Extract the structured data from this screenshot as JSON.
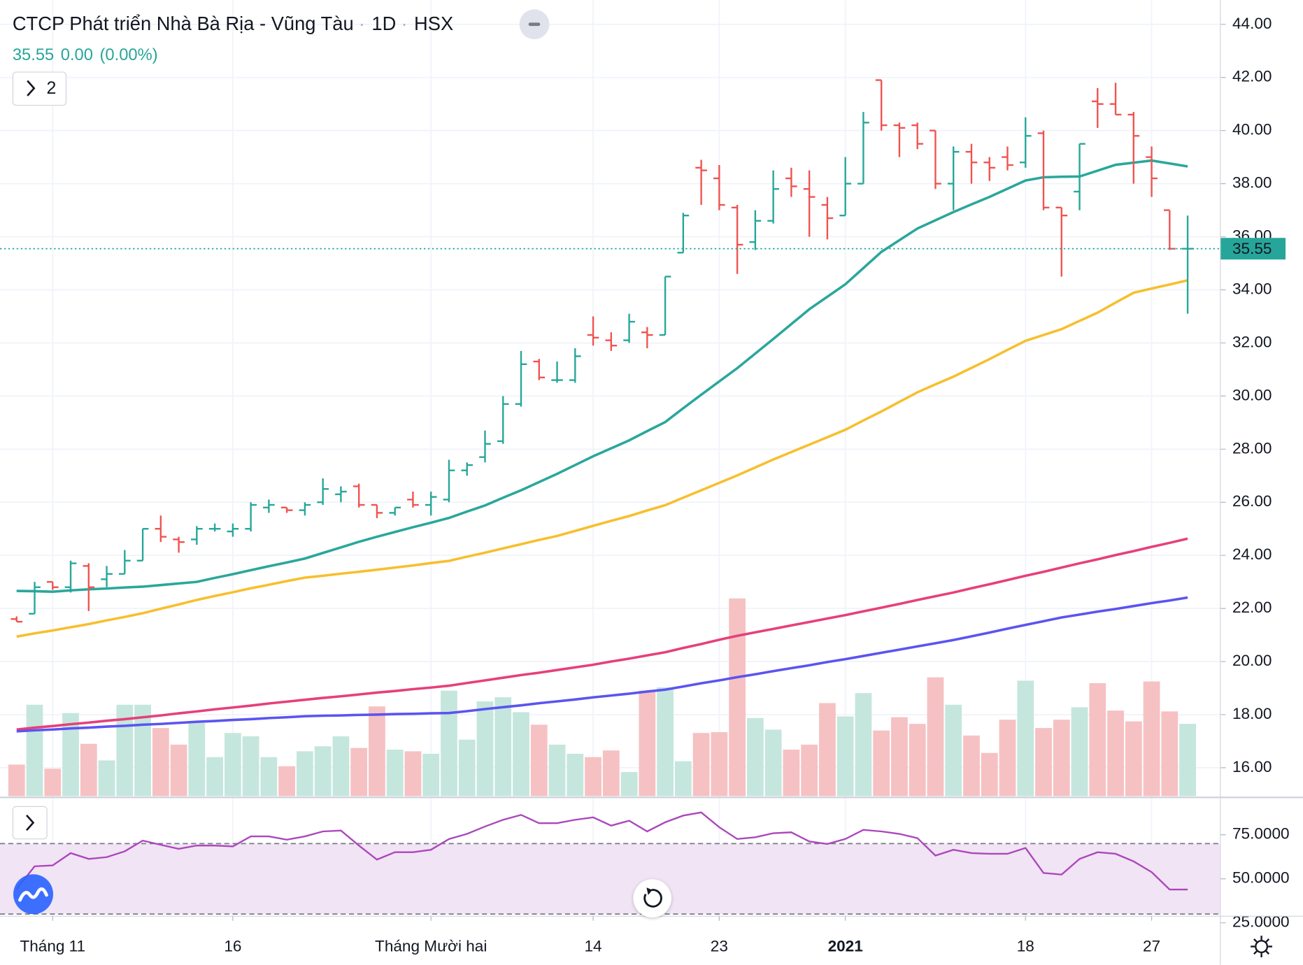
{
  "chart_data": {
    "type": "ohlc",
    "title": "CTCP Phát triển Nhà Bà Rịa - Vũng Tàu",
    "interval": "1D",
    "exchange": "HSX",
    "last": 35.55,
    "change": {
      "value": 0,
      "label": "0.00"
    },
    "change_pct": {
      "value": 0,
      "label": "(0.00%)"
    },
    "indicator_count": 2,
    "categories": [
      null,
      null,
      "Tháng 11",
      null,
      null,
      null,
      null,
      null,
      null,
      null,
      null,
      null,
      "16",
      null,
      null,
      null,
      null,
      null,
      null,
      null,
      null,
      null,
      null,
      "Tháng Mười hai",
      null,
      null,
      null,
      null,
      null,
      null,
      null,
      null,
      "14",
      null,
      null,
      null,
      null,
      null,
      null,
      "23",
      null,
      null,
      null,
      null,
      null,
      null,
      "2021",
      null,
      null,
      null,
      null,
      null,
      null,
      null,
      null,
      null,
      "18",
      null,
      null,
      null,
      null,
      null,
      null,
      "27",
      null,
      null
    ],
    "open": [
      21.6,
      21.8,
      23.0,
      22.8,
      23.6,
      23.1,
      23.3,
      23.8,
      25.0,
      24.6,
      24.6,
      25.0,
      24.9,
      25.0,
      25.8,
      25.8,
      25.7,
      26.0,
      26.3,
      26.6,
      25.9,
      25.6,
      26.1,
      25.9,
      26.1,
      27.2,
      27.7,
      28.3,
      29.7,
      31.3,
      30.6,
      30.6,
      32.3,
      32.1,
      32.1,
      32.4,
      32.3,
      35.4,
      38.6,
      38.2,
      37.1,
      35.8,
      36.6,
      38.2,
      37.8,
      37.2,
      36.8,
      38.0,
      41.9,
      40.2,
      40.2,
      40.0,
      38.0,
      39.2,
      38.8,
      39.0,
      38.8,
      39.9,
      37.1,
      37.7,
      41.1,
      41.0,
      40.6,
      39.0,
      37.0,
      35.55
    ],
    "high": [
      21.7,
      23.0,
      23.0,
      23.8,
      23.7,
      23.6,
      24.2,
      25.0,
      25.5,
      24.7,
      25.1,
      25.2,
      25.2,
      26.0,
      26.1,
      25.8,
      26.0,
      26.9,
      26.6,
      26.7,
      25.9,
      25.8,
      26.4,
      26.4,
      27.6,
      27.5,
      28.7,
      30.0,
      31.7,
      31.4,
      31.3,
      31.8,
      33.0,
      32.4,
      33.1,
      32.6,
      34.5,
      36.9,
      38.9,
      38.7,
      37.2,
      37.0,
      38.5,
      38.6,
      38.5,
      37.5,
      39.0,
      40.7,
      41.9,
      40.3,
      40.3,
      40.0,
      39.4,
      39.5,
      39.0,
      39.4,
      40.5,
      40.0,
      37.1,
      39.5,
      41.6,
      41.8,
      40.7,
      39.4,
      37.0,
      36.8
    ],
    "low": [
      21.5,
      21.8,
      22.7,
      22.6,
      21.9,
      22.8,
      23.3,
      23.8,
      24.5,
      24.1,
      24.4,
      24.9,
      24.7,
      24.9,
      25.6,
      25.6,
      25.5,
      25.9,
      26.0,
      25.8,
      25.4,
      25.5,
      25.8,
      25.5,
      26.0,
      27.0,
      27.5,
      28.2,
      29.6,
      30.6,
      30.5,
      30.5,
      31.9,
      31.7,
      32.0,
      31.8,
      32.3,
      35.4,
      37.2,
      37.0,
      34.6,
      35.5,
      36.5,
      37.5,
      36.0,
      35.9,
      36.8,
      38.0,
      40.0,
      39.0,
      39.3,
      37.8,
      37.0,
      38.0,
      38.1,
      38.5,
      38.6,
      37.0,
      34.5,
      37.0,
      40.1,
      40.6,
      38.0,
      37.5,
      35.5,
      33.1
    ],
    "close": [
      21.5,
      22.8,
      22.8,
      23.7,
      22.8,
      23.3,
      23.8,
      25.0,
      24.7,
      24.5,
      25.0,
      25.0,
      25.0,
      25.9,
      25.9,
      25.7,
      25.9,
      26.5,
      26.4,
      25.9,
      25.6,
      25.8,
      25.9,
      26.2,
      27.2,
      27.4,
      28.2,
      29.7,
      31.2,
      30.7,
      30.6,
      31.5,
      32.2,
      31.9,
      32.8,
      32.3,
      34.5,
      36.8,
      38.5,
      37.2,
      35.7,
      36.6,
      37.8,
      37.9,
      37.5,
      36.7,
      38.0,
      40.3,
      40.2,
      40.1,
      39.5,
      38.0,
      39.2,
      38.8,
      38.6,
      38.7,
      39.8,
      37.1,
      36.8,
      39.5,
      41.0,
      40.6,
      39.8,
      38.2,
      35.55,
      35.55
    ],
    "up_color": "#26a69a",
    "down_color": "#ef5350",
    "volume": [
      38,
      110,
      33,
      100,
      63,
      43,
      110,
      110,
      82,
      62,
      88,
      47,
      76,
      72,
      47,
      36,
      54,
      60,
      72,
      58,
      108,
      56,
      54,
      51,
      127,
      68,
      114,
      119,
      101,
      86,
      62,
      51,
      47,
      55,
      29,
      127,
      131,
      42,
      76,
      77,
      238,
      94,
      80,
      56,
      62,
      112,
      96,
      124,
      79,
      95,
      87,
      143,
      110,
      73,
      52,
      92,
      139,
      82,
      92,
      107,
      136,
      103,
      90,
      138,
      102,
      87
    ],
    "volume_up_color": "#c5e6dd",
    "volume_down_color": "#f6c1c3",
    "series": [
      {
        "color": "#2aa79b",
        "values": [
          22.66,
          22.65,
          22.63,
          22.68,
          22.72,
          22.75,
          22.79,
          22.82,
          22.88,
          22.94,
          23.0,
          23.15,
          23.29,
          23.44,
          23.59,
          23.73,
          23.88,
          24.09,
          24.3,
          24.51,
          24.7,
          24.88,
          25.06,
          25.23,
          25.41,
          25.65,
          25.88,
          26.17,
          26.45,
          26.76,
          27.07,
          27.4,
          27.73,
          28.03,
          28.33,
          28.68,
          29.02,
          29.54,
          30.05,
          30.55,
          31.05,
          31.6,
          32.15,
          32.71,
          33.27,
          33.74,
          34.21,
          34.82,
          35.43,
          35.87,
          36.31,
          36.62,
          36.93,
          37.22,
          37.5,
          37.81,
          38.12,
          38.24,
          38.26,
          38.27,
          38.49,
          38.71,
          38.79,
          38.87,
          38.76,
          38.65
        ]
      },
      {
        "color": "#f7bf2e",
        "values": [
          20.94,
          21.06,
          21.17,
          21.29,
          21.41,
          21.55,
          21.68,
          21.82,
          21.99,
          22.15,
          22.32,
          22.47,
          22.61,
          22.76,
          22.89,
          23.03,
          23.16,
          23.23,
          23.31,
          23.38,
          23.46,
          23.54,
          23.62,
          23.71,
          23.79,
          23.95,
          24.1,
          24.26,
          24.42,
          24.58,
          24.73,
          24.92,
          25.11,
          25.3,
          25.48,
          25.69,
          25.89,
          26.17,
          26.45,
          26.73,
          27.01,
          27.31,
          27.61,
          27.89,
          28.17,
          28.45,
          28.73,
          29.08,
          29.42,
          29.78,
          30.14,
          30.44,
          30.73,
          31.06,
          31.39,
          31.74,
          32.08,
          32.3,
          32.52,
          32.83,
          33.14,
          33.52,
          33.89,
          34.05,
          34.2,
          34.36
        ]
      },
      {
        "color": "#e6407a",
        "values": [
          17.44,
          17.51,
          17.57,
          17.64,
          17.7,
          17.77,
          17.83,
          17.9,
          17.97,
          18.05,
          18.12,
          18.2,
          18.27,
          18.34,
          18.42,
          18.49,
          18.56,
          18.63,
          18.69,
          18.76,
          18.83,
          18.89,
          18.96,
          19.02,
          19.09,
          19.19,
          19.29,
          19.39,
          19.49,
          19.58,
          19.68,
          19.78,
          19.88,
          20.0,
          20.11,
          20.23,
          20.35,
          20.51,
          20.66,
          20.82,
          20.97,
          21.1,
          21.23,
          21.36,
          21.49,
          21.62,
          21.75,
          21.89,
          22.03,
          22.17,
          22.32,
          22.46,
          22.6,
          22.76,
          22.91,
          23.07,
          23.23,
          23.38,
          23.54,
          23.7,
          23.85,
          24.01,
          24.16,
          24.32,
          24.47,
          24.63
        ]
      },
      {
        "color": "#5b54f0",
        "values": [
          17.37,
          17.41,
          17.44,
          17.48,
          17.51,
          17.55,
          17.58,
          17.62,
          17.65,
          17.69,
          17.73,
          17.76,
          17.8,
          17.83,
          17.87,
          17.9,
          17.94,
          17.96,
          17.97,
          17.99,
          18.0,
          18.02,
          18.03,
          18.05,
          18.06,
          18.13,
          18.21,
          18.28,
          18.35,
          18.43,
          18.5,
          18.57,
          18.65,
          18.72,
          18.79,
          18.87,
          18.94,
          19.06,
          19.18,
          19.29,
          19.41,
          19.52,
          19.64,
          19.75,
          19.86,
          19.98,
          20.09,
          20.21,
          20.33,
          20.45,
          20.57,
          20.69,
          20.81,
          20.95,
          21.09,
          21.24,
          21.38,
          21.52,
          21.66,
          21.77,
          21.88,
          21.98,
          22.09,
          22.2,
          22.3,
          22.41
        ]
      }
    ],
    "ylim": [
      14.93,
      44.91
    ],
    "yticks": [
      {
        "value": 16,
        "label": "16.00"
      },
      {
        "value": 18,
        "label": "18.00"
      },
      {
        "value": 20,
        "label": "20.00"
      },
      {
        "value": 22,
        "label": "22.00"
      },
      {
        "value": 24,
        "label": "24.00"
      },
      {
        "value": 26,
        "label": "26.00"
      },
      {
        "value": 28,
        "label": "28.00"
      },
      {
        "value": 30,
        "label": "30.00"
      },
      {
        "value": 32,
        "label": "32.00"
      },
      {
        "value": 34,
        "label": "34.00"
      },
      {
        "value": 36,
        "label": "36.00"
      },
      {
        "value": 38,
        "label": "38.00"
      },
      {
        "value": 40,
        "label": "40.00"
      },
      {
        "value": 42,
        "label": "42.00"
      },
      {
        "value": 44,
        "label": "44.00"
      }
    ],
    "grid": true,
    "rsi": {
      "color": "#ab47bc",
      "values": [
        44.3,
        57.1,
        57.6,
        64.6,
        61.3,
        62.3,
        65.6,
        71.7,
        69.3,
        67.0,
        68.9,
        68.9,
        68.4,
        74.1,
        74.1,
        72.2,
        74.1,
        76.9,
        77.4,
        68.9,
        60.9,
        65.1,
        65.1,
        66.5,
        72.6,
        75.5,
        79.7,
        83.5,
        86.3,
        81.6,
        81.6,
        83.5,
        84.9,
        80.2,
        83.0,
        76.9,
        82.1,
        85.9,
        87.7,
        79.3,
        72.6,
        73.6,
        75.9,
        76.4,
        71.2,
        69.8,
        72.6,
        77.8,
        76.9,
        75.5,
        73.1,
        63.2,
        66.5,
        64.6,
        64.2,
        64.2,
        67.5,
        53.3,
        52.4,
        61.3,
        65.1,
        64.2,
        59.9,
        53.8,
        43.9,
        43.9
      ],
      "ylim": [
        29,
        96
      ],
      "band": [
        30,
        70
      ],
      "band_color": "#f1e4f4",
      "yticks": [
        {
          "value": 25,
          "label": "25.0000"
        },
        {
          "value": 50,
          "label": "50.0000"
        },
        {
          "value": 75,
          "label": "75.0000"
        }
      ]
    }
  }
}
